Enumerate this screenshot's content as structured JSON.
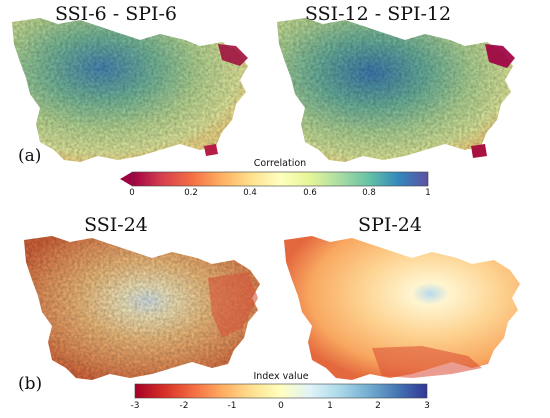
{
  "panel_a": {
    "label": "(a)",
    "map_left_title": "SSI-6 - SPI-6",
    "map_right_title": "SSI-12 - SPI-12",
    "colorbar": {
      "title": "Correlation",
      "ticks": [
        "0",
        "0.2",
        "0.4",
        "0.6",
        "0.8",
        "1"
      ],
      "tick_values": [
        0,
        0.2,
        0.4,
        0.6,
        0.8,
        1
      ],
      "range": [
        0,
        1
      ],
      "extend": "min",
      "colors": [
        "#9e0142",
        "#d53e4f",
        "#f46d43",
        "#fdae61",
        "#fee08b",
        "#ffffbf",
        "#e6f598",
        "#abdda4",
        "#66c2a5",
        "#3288bd",
        "#5e4fa2"
      ]
    }
  },
  "panel_b": {
    "label": "(b)",
    "map_left_title": "SSI-24",
    "map_right_title": "SPI-24",
    "colorbar": {
      "title": "Index value",
      "ticks": [
        "-3",
        "-2",
        "-1",
        "0",
        "1",
        "2",
        "3"
      ],
      "tick_values": [
        -3,
        -2,
        -1,
        0,
        1,
        2,
        3
      ],
      "range": [
        -3,
        3
      ],
      "colors": [
        "#a50026",
        "#d73027",
        "#f46d43",
        "#fdae61",
        "#fee090",
        "#ffffbf",
        "#e0f3f8",
        "#abd9e9",
        "#74add1",
        "#4575b4",
        "#313695"
      ]
    }
  }
}
